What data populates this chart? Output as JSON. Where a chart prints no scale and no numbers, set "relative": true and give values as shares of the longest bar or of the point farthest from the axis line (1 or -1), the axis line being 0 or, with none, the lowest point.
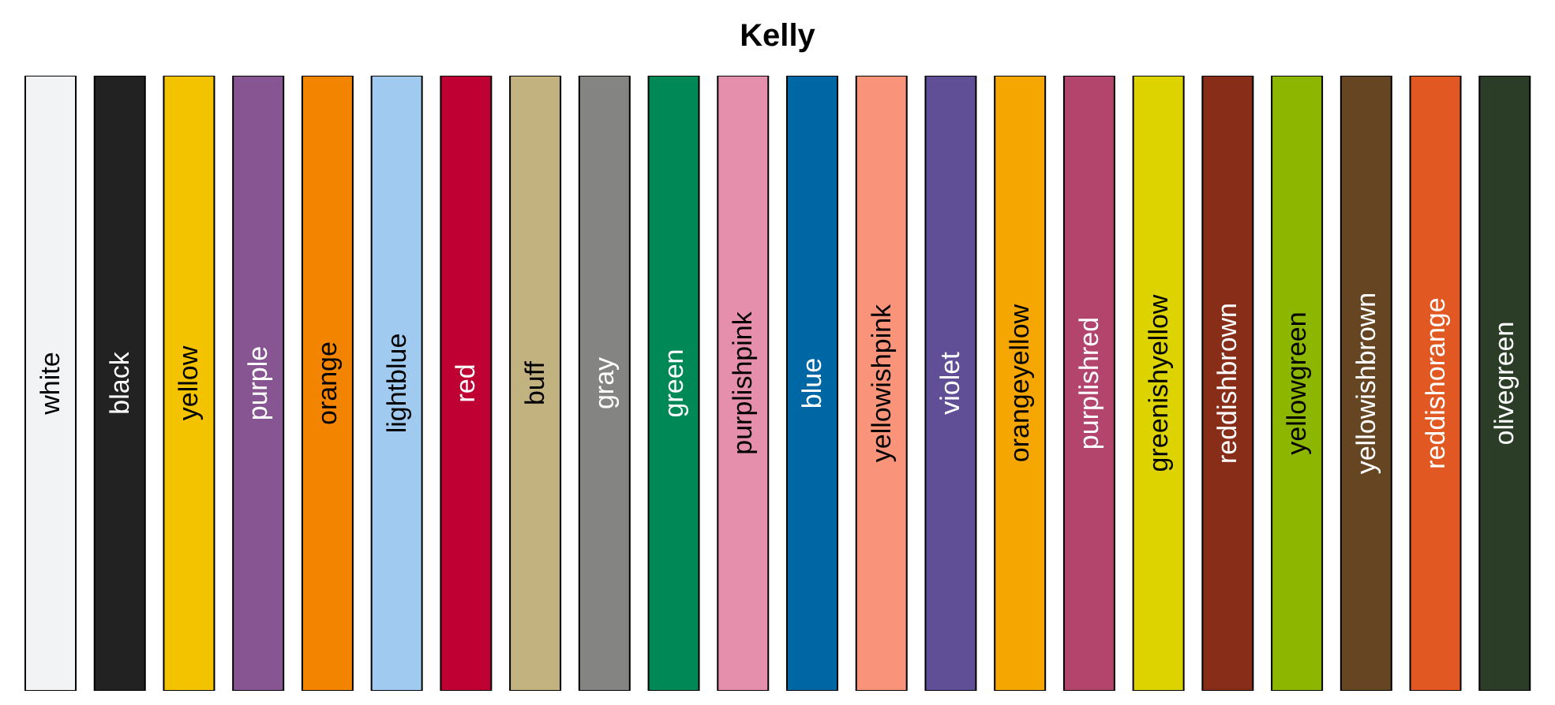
{
  "chart_data": {
    "type": "bar",
    "title": "Kelly",
    "relative": true,
    "categories": [
      "white",
      "black",
      "yellow",
      "purple",
      "orange",
      "lightblue",
      "red",
      "buff",
      "gray",
      "green",
      "purplishpink",
      "blue",
      "yellowishpink",
      "violet",
      "orangeyellow",
      "purplishred",
      "greenishyellow",
      "reddishbrown",
      "yellowgreen",
      "yellowishbrown",
      "reddishorange",
      "olivegreen"
    ],
    "values": [
      1,
      1,
      1,
      1,
      1,
      1,
      1,
      1,
      1,
      1,
      1,
      1,
      1,
      1,
      1,
      1,
      1,
      1,
      1,
      1,
      1,
      1
    ],
    "colors": [
      "#f2f3f4",
      "#222222",
      "#f3c300",
      "#875692",
      "#f38400",
      "#a1caf1",
      "#be0032",
      "#c2b280",
      "#848482",
      "#008856",
      "#e68fac",
      "#0067a5",
      "#f99379",
      "#604e97",
      "#f6a600",
      "#b3446c",
      "#dcd300",
      "#882d17",
      "#8db600",
      "#654522",
      "#e25822",
      "#2b3d26"
    ]
  }
}
